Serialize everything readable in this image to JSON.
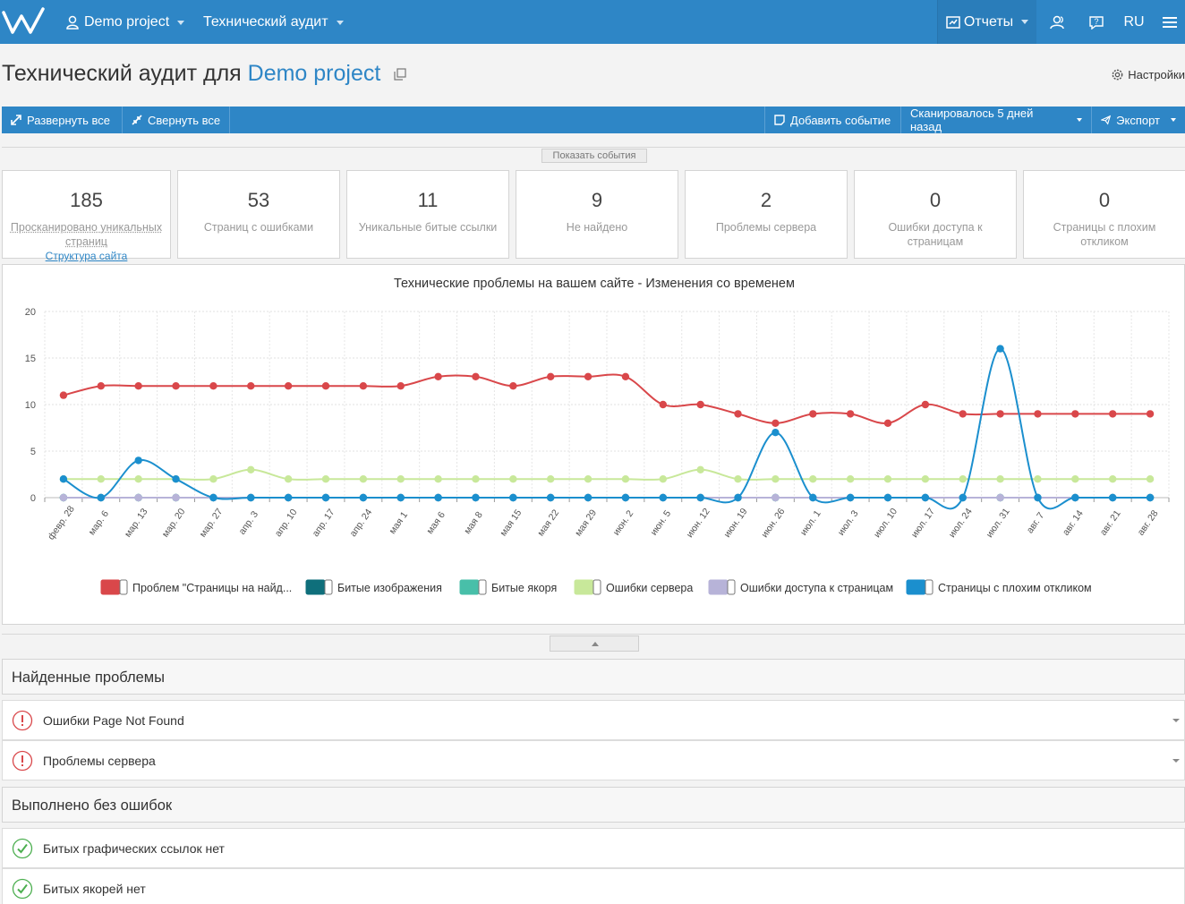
{
  "nav": {
    "project": "Demo project",
    "section": "Технический аудит",
    "reports": "Отчеты",
    "lang": "RU"
  },
  "page": {
    "title_prefix": "Технический аудит для ",
    "title_project": "Demo project",
    "settings": "Настройки"
  },
  "toolbar": {
    "expand_all": "Развернуть все",
    "collapse_all": "Свернуть все",
    "add_event": "Добавить событие",
    "scanned": "Сканировалось 5 дней назад",
    "export": "Экспорт"
  },
  "show_events": "Показать события",
  "stats": [
    {
      "value": "185",
      "label": "Просканировано уникальных страниц",
      "link": "Структура сайта"
    },
    {
      "value": "53",
      "label": "Страниц с ошибками"
    },
    {
      "value": "11",
      "label": "Уникальные битые ссылки"
    },
    {
      "value": "9",
      "label": "Не найдено"
    },
    {
      "value": "2",
      "label": "Проблемы сервера"
    },
    {
      "value": "0",
      "label": "Ошибки доступа к страницам"
    },
    {
      "value": "0",
      "label": "Страницы с плохим откликом"
    }
  ],
  "chart_data": {
    "type": "line",
    "title": "Технические проблемы на вашем сайте - Изменения со временем",
    "xlabel": "",
    "ylabel": "",
    "ylim": [
      0,
      20
    ],
    "yticks": [
      0,
      5,
      10,
      15,
      20
    ],
    "grid": true,
    "legend_position": "bottom",
    "categories": [
      "февр. 28",
      "мар. 6",
      "мар. 13",
      "мар. 20",
      "мар. 27",
      "апр. 3",
      "апр. 10",
      "апр. 17",
      "апр. 24",
      "мая 1",
      "мая 6",
      "мая 8",
      "мая 15",
      "мая 22",
      "мая 29",
      "июн. 2",
      "июн. 5",
      "июн. 12",
      "июн. 19",
      "июн. 26",
      "июл. 1",
      "июл. 3",
      "июл. 10",
      "июл. 17",
      "июл. 24",
      "июл. 31",
      "авг. 7",
      "авг. 14",
      "авг. 21",
      "авг. 28"
    ],
    "series": [
      {
        "name": "Проблем \"Страницы на найд...",
        "color": "#d9474a",
        "values": [
          11,
          12,
          12,
          12,
          12,
          12,
          12,
          12,
          12,
          12,
          13,
          13,
          12,
          13,
          13,
          13,
          10,
          10,
          9,
          8,
          9,
          9,
          8,
          10,
          9,
          9,
          9,
          9,
          9,
          9
        ]
      },
      {
        "name": "Битые изображения",
        "color": "#0f6f7b",
        "values": [
          0,
          0,
          0,
          0,
          0,
          0,
          0,
          0,
          0,
          0,
          0,
          0,
          0,
          0,
          0,
          0,
          0,
          0,
          0,
          0,
          0,
          0,
          0,
          0,
          0,
          0,
          0,
          0,
          0,
          0
        ]
      },
      {
        "name": "Битые якоря",
        "color": "#48bfa9",
        "values": [
          0,
          0,
          0,
          0,
          0,
          0,
          0,
          0,
          0,
          0,
          0,
          0,
          0,
          0,
          0,
          0,
          0,
          0,
          0,
          0,
          0,
          0,
          0,
          0,
          0,
          0,
          0,
          0,
          0,
          0
        ]
      },
      {
        "name": "Ошибки сервера",
        "color": "#c8e89a",
        "values": [
          2,
          2,
          2,
          2,
          2,
          3,
          2,
          2,
          2,
          2,
          2,
          2,
          2,
          2,
          2,
          2,
          2,
          3,
          2,
          2,
          2,
          2,
          2,
          2,
          2,
          2,
          2,
          2,
          2,
          2
        ]
      },
      {
        "name": "Ошибки доступа к страницам",
        "color": "#b7b3d8",
        "values": [
          0,
          0,
          0,
          0,
          0,
          0,
          0,
          0,
          0,
          0,
          0,
          0,
          0,
          0,
          0,
          0,
          0,
          0,
          0,
          0,
          0,
          0,
          0,
          0,
          0,
          0,
          0,
          0,
          0,
          0
        ]
      },
      {
        "name": "Страницы с плохим откликом",
        "color": "#1b8fce",
        "values": [
          2,
          0,
          4,
          2,
          0,
          0,
          0,
          0,
          0,
          0,
          0,
          0,
          0,
          0,
          0,
          0,
          0,
          0,
          0,
          7,
          0,
          0,
          0,
          0,
          0,
          16,
          0,
          0,
          0,
          0
        ]
      }
    ]
  },
  "found_problems": {
    "heading": "Найденные проблемы",
    "items": [
      "Ошибки Page Not Found",
      "Проблемы сервера"
    ]
  },
  "passed": {
    "heading": "Выполнено без ошибок",
    "items": [
      "Битых графических ссылок нет",
      "Битых якорей нет"
    ]
  },
  "colors": {
    "primary": "#2e86c6",
    "error": "#d9474a",
    "ok": "#4caf50"
  }
}
